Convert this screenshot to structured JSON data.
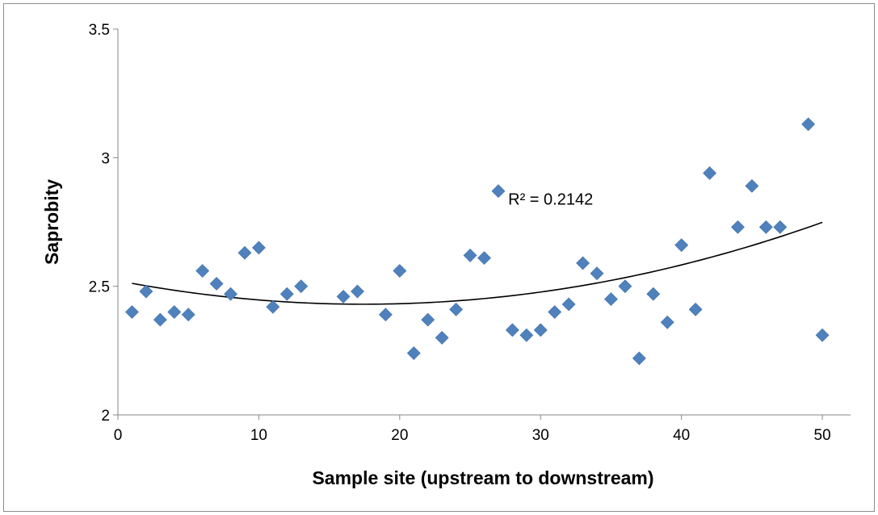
{
  "chart_data": {
    "type": "scatter",
    "title": "",
    "xlabel": "Sample site (upstream to downstream)",
    "ylabel": "Saprobity",
    "xlim": [
      0,
      52
    ],
    "ylim": [
      2,
      3.5
    ],
    "xticks": [
      0,
      10,
      20,
      30,
      40,
      50
    ],
    "yticks": [
      2,
      2.5,
      3,
      3.5
    ],
    "xtick_labels": [
      "0",
      "10",
      "20",
      "30",
      "40",
      "50"
    ],
    "ytick_labels": [
      "2",
      "2.5",
      "3",
      "3.5"
    ],
    "grid": false,
    "legend": "none",
    "marker": "diamond",
    "marker_color": "#4F81BD",
    "trendline_color": "#000000",
    "series": [
      {
        "x": [
          1,
          2,
          3,
          4,
          5,
          6,
          7,
          8,
          9,
          10,
          11,
          12,
          13,
          16,
          17,
          19,
          20,
          21,
          22,
          23,
          24,
          25,
          26,
          27,
          28,
          29,
          30,
          31,
          32,
          33,
          34,
          35,
          36,
          37,
          38,
          39,
          40,
          41,
          42,
          44,
          45,
          46,
          47,
          49,
          50
        ],
        "y": [
          2.4,
          2.48,
          2.37,
          2.4,
          2.39,
          2.56,
          2.51,
          2.47,
          2.63,
          2.65,
          2.42,
          2.47,
          2.5,
          2.46,
          2.48,
          2.39,
          2.56,
          2.24,
          2.37,
          2.3,
          2.41,
          2.62,
          2.61,
          2.87,
          2.33,
          2.31,
          2.33,
          2.4,
          2.43,
          2.59,
          2.55,
          2.45,
          2.5,
          2.22,
          2.47,
          2.36,
          2.66,
          2.41,
          2.94,
          2.73,
          2.89,
          2.73,
          2.73,
          3.13,
          2.31
        ]
      }
    ],
    "trendline": {
      "type": "polynomial",
      "order": 2,
      "points": [
        [
          1,
          2.51
        ],
        [
          10,
          2.45
        ],
        [
          20,
          2.43
        ],
        [
          30,
          2.48
        ],
        [
          40,
          2.58
        ],
        [
          50,
          2.75
        ]
      ]
    },
    "annotations": [
      {
        "text": "R² = 0.2142",
        "x": 27.7,
        "y": 2.84
      }
    ]
  }
}
